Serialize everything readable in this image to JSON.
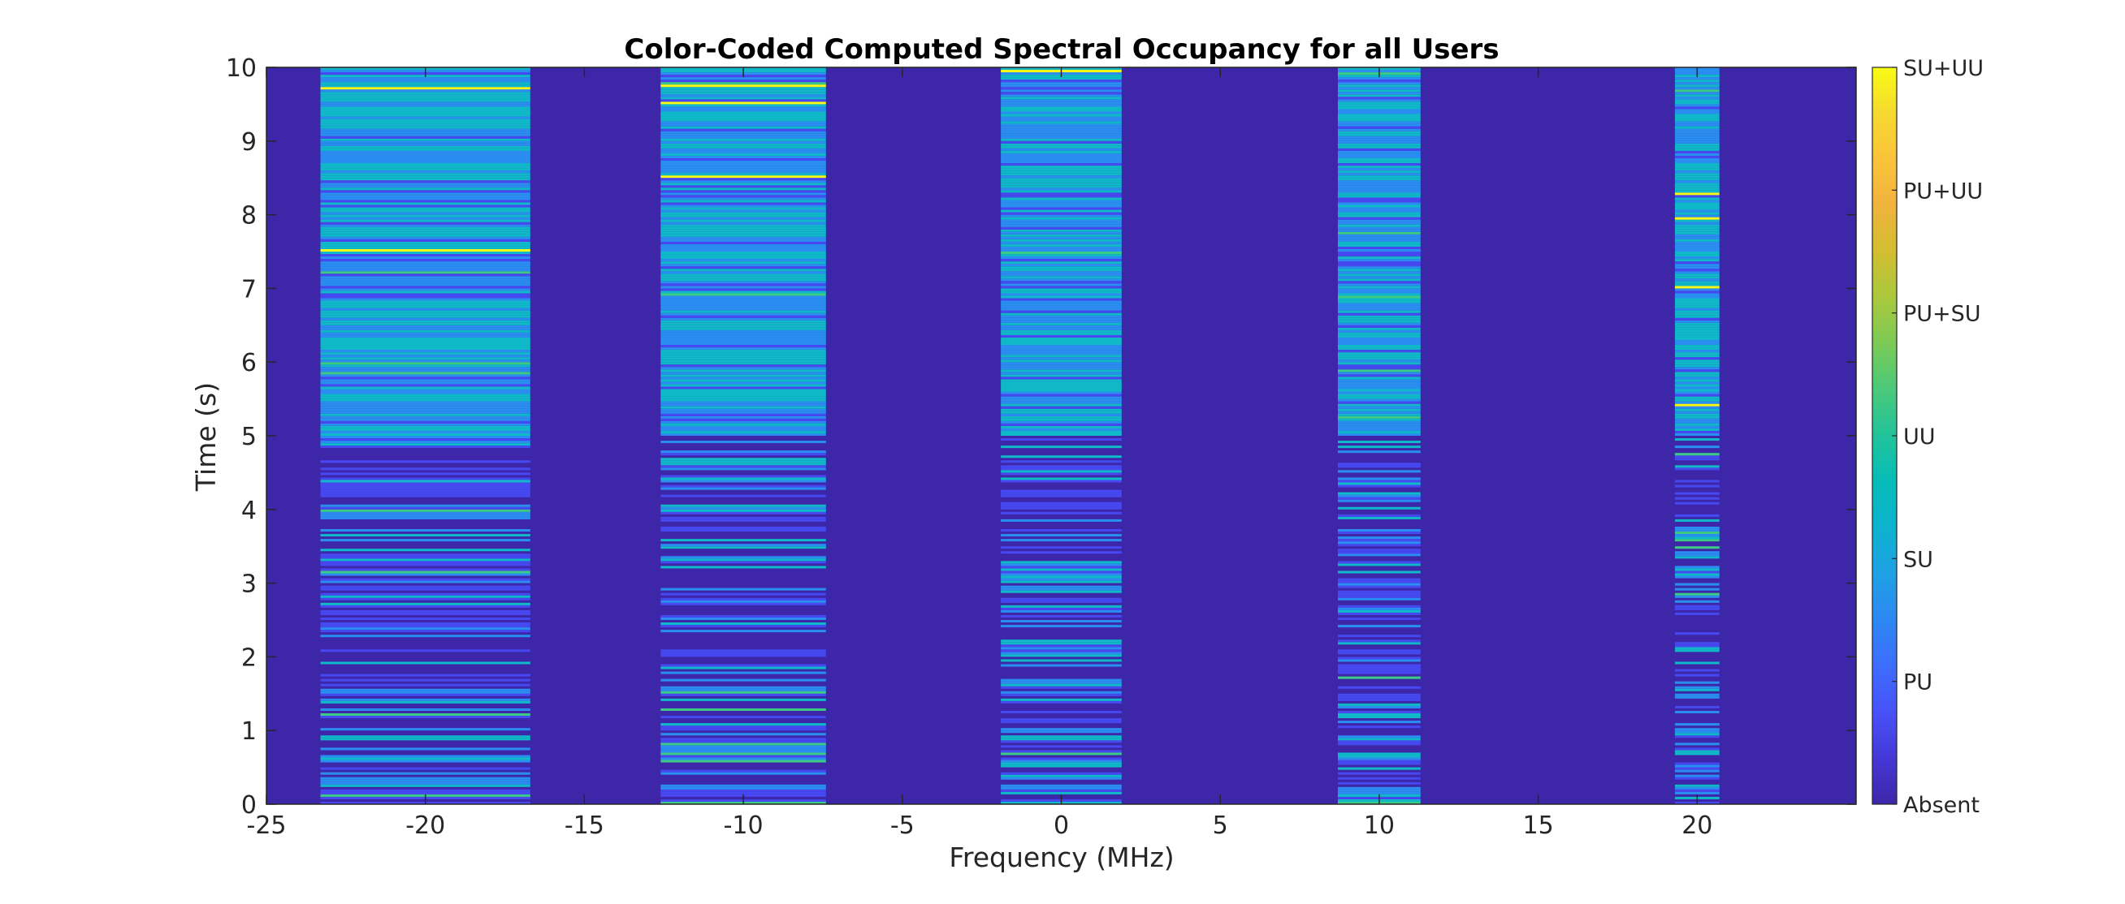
{
  "chart_data": {
    "type": "heatmap",
    "title": "Color-Coded Computed Spectral Occupancy for all Users",
    "xlabel": "Frequency (MHz)",
    "ylabel": "Time (s)",
    "xlim": [
      -25,
      25
    ],
    "ylim": [
      0,
      10
    ],
    "x_ticks": [
      "-25",
      "-20",
      "-15",
      "-10",
      "-5",
      "0",
      "5",
      "10",
      "15",
      "20"
    ],
    "x_tick_values": [
      -25,
      -20,
      -15,
      -10,
      -5,
      0,
      5,
      10,
      15,
      20
    ],
    "y_ticks": [
      "0",
      "1",
      "2",
      "3",
      "4",
      "5",
      "6",
      "7",
      "8",
      "9",
      "10"
    ],
    "y_tick_values": [
      0,
      1,
      2,
      3,
      4,
      5,
      6,
      7,
      8,
      9,
      10
    ],
    "colorbar": {
      "labels": [
        "Absent",
        "PU",
        "SU",
        "UU",
        "PU+SU",
        "PU+UU",
        "SU+UU"
      ],
      "colors": [
        "#3e26a8",
        "#4648f0",
        "#2a8ef0",
        "#0fb9c8",
        "#3bcb85",
        "#f0b13f",
        "#f9fb15"
      ]
    },
    "background_state": "Absent",
    "bands": [
      {
        "f_start": -23.3,
        "f_stop": -16.7
      },
      {
        "f_start": -12.6,
        "f_stop": -7.4
      },
      {
        "f_start": -1.9,
        "f_stop": 1.9
      },
      {
        "f_start": 8.7,
        "f_stop": 11.3
      },
      {
        "f_start": 19.3,
        "f_stop": 20.7
      }
    ],
    "occupancy_pattern": "Before t=5 s each band shows sparse horizontal PU/SU/UU bursts over the Absent background; from t=5 s to t=10 s each band is continuously occupied by mixed SU/UU with occasional PU and rare PU+SU/SU+UU lines."
  }
}
